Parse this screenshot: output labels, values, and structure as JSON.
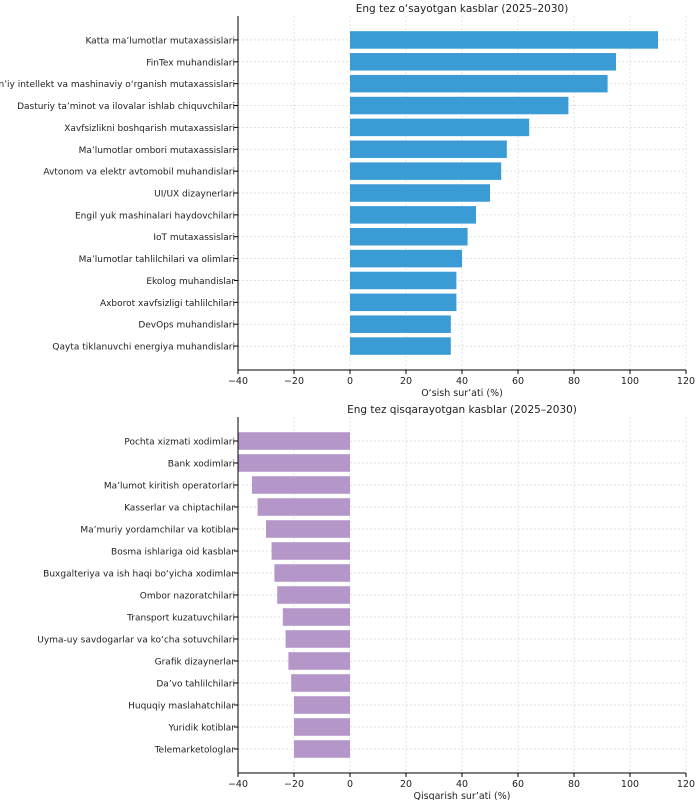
{
  "chart_data": [
    {
      "type": "bar",
      "orientation": "horizontal",
      "title": "Eng tez o‘sayotgan kasblar (2025–2030)",
      "xlabel": "O‘sish sur’ati (%)",
      "ylabel": "",
      "xlim": [
        -40,
        120
      ],
      "xticks": [
        "−40",
        "−20",
        "0",
        "20",
        "40",
        "60",
        "80",
        "100",
        "120"
      ],
      "grid": true,
      "color": "#3a9bd5",
      "categories": [
        "Katta ma’lumotlar mutaxassislari",
        "FinTex muhandislari",
        "Sun’iy intellekt va mashinaviy o‘rganish mutaxassislari",
        "Dasturiy ta’minot va ilovalar ishlab chiquvchilari",
        "Xavfsizlikni boshqarish mutaxassislari",
        "Ma’lumotlar ombori mutaxassislari",
        "Avtonom va elektr avtomobil muhandislari",
        "UI/UX dizaynerlari",
        "Engil yuk mashinalari haydovchilari",
        "IoT mutaxassislari",
        "Ma’lumotlar tahlilchilari va olimlari",
        "Ekolog muhandislar",
        "Axborot xavfsizligi tahlilchilari",
        "DevOps muhandislari",
        "Qayta tiklanuvchi energiya muhandislari"
      ],
      "values": [
        110,
        95,
        92,
        78,
        64,
        56,
        54,
        50,
        45,
        42,
        40,
        38,
        38,
        36,
        36
      ]
    },
    {
      "type": "bar",
      "orientation": "horizontal",
      "title": "Eng tez qisqarayotgan kasblar (2025–2030)",
      "xlabel": "Qisqarish sur’ati (%)",
      "ylabel": "",
      "xlim": [
        -40,
        120
      ],
      "xticks": [
        "−40",
        "−20",
        "0",
        "20",
        "40",
        "60",
        "80",
        "100",
        "120"
      ],
      "grid": true,
      "color": "#b497c8",
      "categories": [
        "Pochta xizmati xodimlari",
        "Bank xodimlari",
        "Ma’lumot kiritish operatorlari",
        "Kasserlar va chiptachilar",
        "Ma’muriy yordamchilar va kotiblar",
        "Bosma ishlariga oid kasblar",
        "Buxgalteriya va ish haqi bo‘yicha xodimlar",
        "Ombor nazoratchilari",
        "Transport kuzatuvchilari",
        "Uyma-uy savdogarlar va ko‘cha sotuvchilari",
        "Grafik dizaynerlar",
        "Da’vo tahlilchilari",
        "Huquqiy maslahatchilar",
        "Yuridik kotiblar",
        "Telemarketologlar"
      ],
      "values": [
        -40,
        -40,
        -35,
        -33,
        -30,
        -28,
        -27,
        -26,
        -24,
        -23,
        -22,
        -21,
        -20,
        -20,
        -20
      ]
    }
  ]
}
